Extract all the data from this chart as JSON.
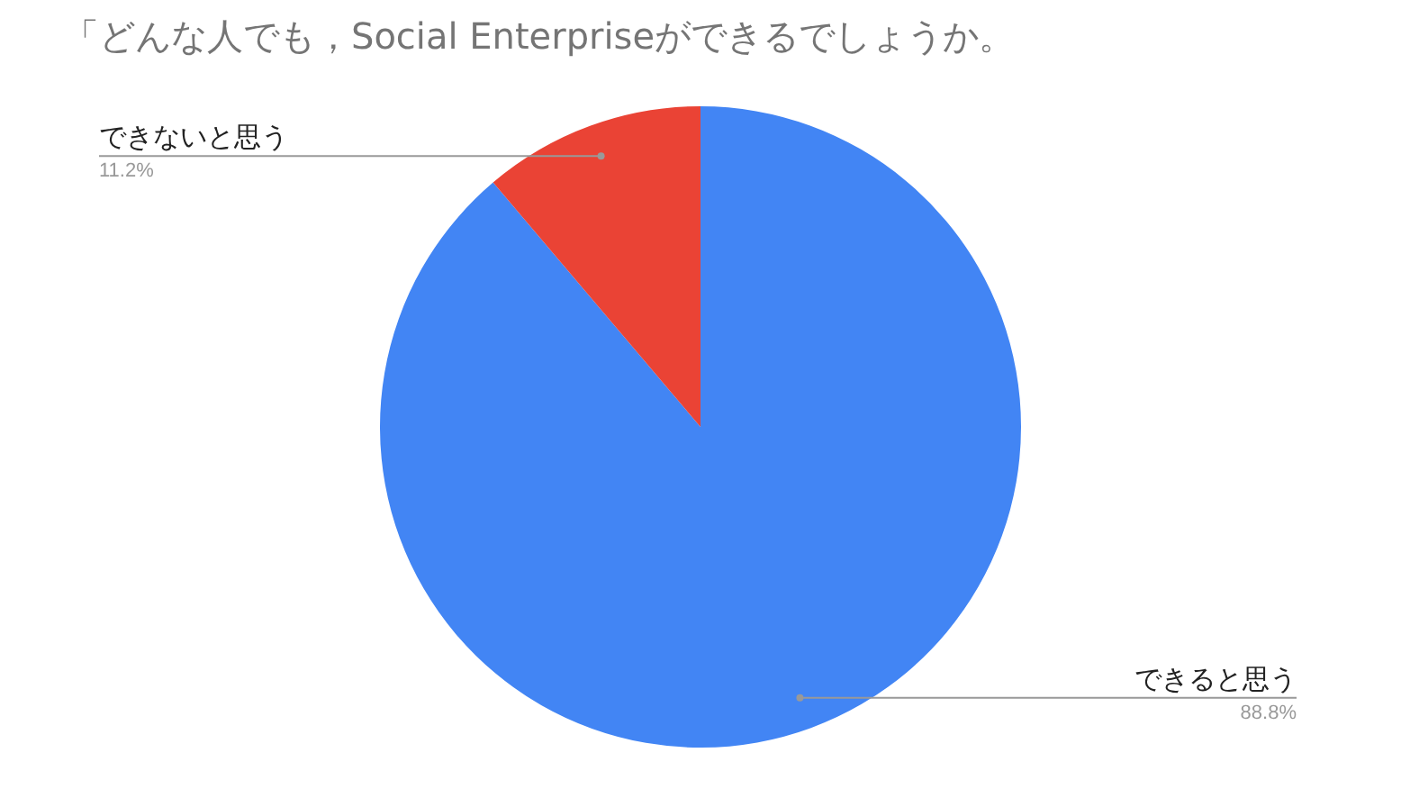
{
  "chart_data": {
    "type": "pie",
    "title": "「どんな人でも，Social Enterpriseができるでしょうか。",
    "categories": [
      "できると思う",
      "できないと思う"
    ],
    "values": [
      88.8,
      11.2
    ],
    "colors": [
      "#4285f4",
      "#ea4335"
    ],
    "value_labels": [
      "88.8%",
      "11.2%"
    ],
    "legend": false
  }
}
